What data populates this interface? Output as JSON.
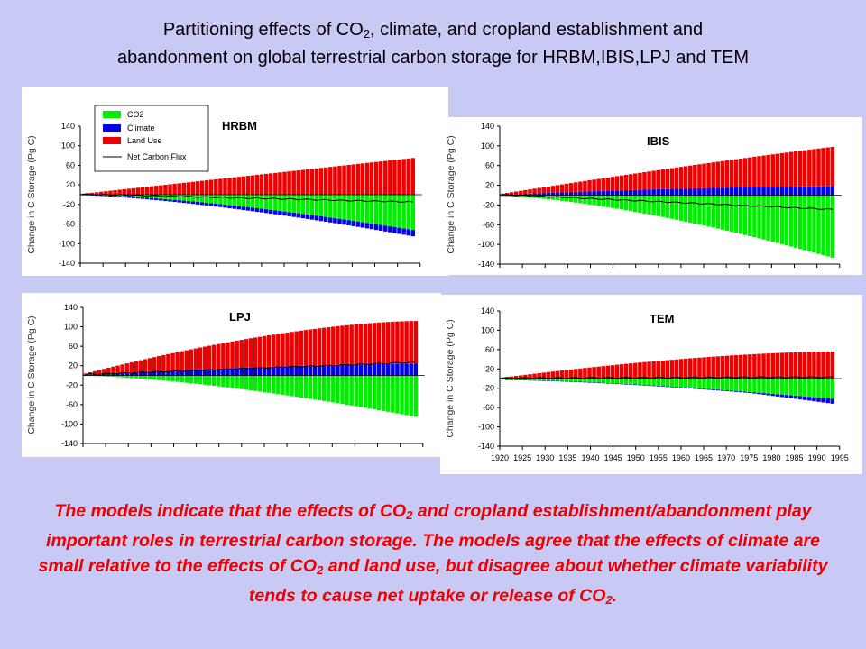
{
  "title": {
    "line1_pre": "Partitioning effects of CO",
    "line1_sub": "2",
    "line1_post": ", climate, and cropland establishment and",
    "line2": "abandonment on global terrestrial carbon storage for HRBM,IBIS,LPJ and TEM"
  },
  "caption": {
    "s1": "The models indicate that the effects of CO",
    "sub1": "2",
    "s2": " and cropland establishment/abandonment play important roles in terrestrial carbon storage.  The models agree that the effects of climate are small relative to the effects of CO",
    "sub2": "2",
    "s3": " and land use, but disagree about whether climate variability tends to cause net uptake or release of CO",
    "sub3": "2",
    "s4": "."
  },
  "legend": {
    "co2": "CO2",
    "climate": "Climate",
    "land_use": "Land Use",
    "net_flux": "Net Carbon Flux"
  },
  "colors": {
    "co2": "#00ee00",
    "climate": "#0000ee",
    "land_use": "#ee0000",
    "net_flux": "#000000",
    "background": "#c9c9f6",
    "caption": "#ee0000"
  },
  "chart_data": [
    {
      "type": "bar",
      "model": "HRBM",
      "stacked": true,
      "ylabel": "Change in C Storage (Pg C)",
      "ylim": [
        -140,
        140
      ],
      "yticks": [
        140,
        100,
        60,
        20,
        -20,
        -60,
        -100,
        -140
      ],
      "x_range": [
        1920,
        1992
      ],
      "legend": "top-left",
      "series": [
        {
          "name": "CO2",
          "x": [
            1920,
            1992
          ],
          "values": [
            0,
            -72
          ],
          "shape": "accelerating"
        },
        {
          "name": "Climate",
          "x": [
            1920,
            1992
          ],
          "values": [
            -1,
            -13
          ],
          "shape": "linear"
        },
        {
          "name": "Land Use",
          "x": [
            1920,
            1992
          ],
          "values": [
            2,
            75
          ],
          "shape": "linear"
        },
        {
          "name": "Net Carbon Flux",
          "x": [
            1920,
            1992
          ],
          "values": [
            1,
            -15
          ],
          "shape": "line"
        }
      ]
    },
    {
      "type": "bar",
      "model": "IBIS",
      "stacked": true,
      "ylabel": "Change in C Storage (Pg C)",
      "ylim": [
        -140,
        140
      ],
      "yticks": [
        140,
        100,
        60,
        20,
        -20,
        -60,
        -100,
        -140
      ],
      "x_range": [
        1920,
        1992
      ],
      "series": [
        {
          "name": "CO2",
          "x": [
            1920,
            1992
          ],
          "values": [
            -2,
            -127
          ],
          "shape": "accelerating"
        },
        {
          "name": "Climate",
          "x": [
            1920,
            1992
          ],
          "values": [
            1,
            18
          ],
          "shape": "saturating"
        },
        {
          "name": "Land Use",
          "x": [
            1920,
            1992
          ],
          "values": [
            2,
            80
          ],
          "shape": "linear"
        },
        {
          "name": "Net Carbon Flux",
          "x": [
            1920,
            1992
          ],
          "values": [
            1,
            -29
          ],
          "shape": "line"
        }
      ]
    },
    {
      "type": "bar",
      "model": "LPJ",
      "stacked": true,
      "ylabel": "Change in C Storage (Pg C)",
      "ylim": [
        -140,
        140
      ],
      "yticks": [
        140,
        100,
        60,
        20,
        -20,
        -60,
        -100,
        -140
      ],
      "x_range": [
        1920,
        1992
      ],
      "series": [
        {
          "name": "CO2",
          "x": [
            1920,
            1992
          ],
          "values": [
            -1,
            -85
          ],
          "shape": "accelerating"
        },
        {
          "name": "Climate",
          "x": [
            1920,
            1992
          ],
          "values": [
            1,
            24
          ],
          "shape": "saturating"
        },
        {
          "name": "Land Use",
          "x": [
            1920,
            1992
          ],
          "values": [
            3,
            88
          ],
          "shape": "saturating"
        },
        {
          "name": "Net Carbon Flux",
          "x": [
            1920,
            1992
          ],
          "values": [
            2,
            27
          ],
          "shape": "line"
        }
      ]
    },
    {
      "type": "bar",
      "model": "TEM",
      "stacked": true,
      "ylabel": "Change in C Storage (Pg C)",
      "ylim": [
        -140,
        140
      ],
      "yticks": [
        140,
        100,
        60,
        20,
        -20,
        -60,
        -100,
        -140
      ],
      "x_range": [
        1920,
        1992
      ],
      "xticks": [
        1920,
        1925,
        1930,
        1935,
        1940,
        1945,
        1950,
        1955,
        1960,
        1965,
        1970,
        1975,
        1980,
        1985,
        1990,
        1995
      ],
      "series": [
        {
          "name": "CO2",
          "x": [
            1920,
            1992
          ],
          "values": [
            -2,
            -42
          ],
          "shape": "accelerating"
        },
        {
          "name": "Climate",
          "x": [
            1920,
            1992
          ],
          "values": [
            0,
            -10
          ],
          "shape": "late-onset"
        },
        {
          "name": "Land Use",
          "x": [
            1920,
            1992
          ],
          "values": [
            2,
            56
          ],
          "shape": "saturating"
        },
        {
          "name": "Net Carbon Flux",
          "x": [
            1920,
            1992
          ],
          "values": [
            1,
            3
          ],
          "shape": "line"
        }
      ]
    }
  ]
}
